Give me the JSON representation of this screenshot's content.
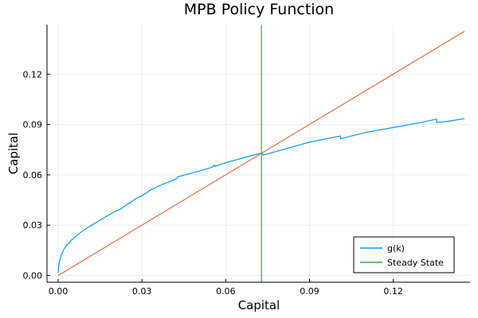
{
  "chart_data": {
    "type": "line",
    "title": "MPB Policy Function",
    "xlabel": "Capital",
    "ylabel": "Capital",
    "xlim": [
      -0.004,
      0.1475
    ],
    "ylim": [
      -0.004,
      0.1495
    ],
    "xticks": [
      0.0,
      0.03,
      0.06,
      0.09,
      0.12
    ],
    "xtick_labels": [
      "0.00",
      "0.03",
      "0.06",
      "0.09",
      "0.12"
    ],
    "yticks": [
      0.0,
      0.03,
      0.06,
      0.09,
      0.12
    ],
    "ytick_labels": [
      "0.00",
      "0.03",
      "0.06",
      "0.09",
      "0.12"
    ],
    "grid": true,
    "legend_position": "bottom-right",
    "series": [
      {
        "name": "g(k)",
        "color": "#009af9",
        "x": [
          0.0,
          0.0002,
          0.0006,
          0.0012,
          0.002,
          0.003,
          0.005,
          0.0075,
          0.01,
          0.0125,
          0.015,
          0.0175,
          0.02,
          0.0225,
          0.025,
          0.0255,
          0.0275,
          0.03,
          0.0325,
          0.0326,
          0.035,
          0.0375,
          0.04,
          0.0425,
          0.0428,
          0.045,
          0.05,
          0.055,
          0.056,
          0.0561,
          0.06,
          0.065,
          0.07,
          0.073,
          0.0735,
          0.08,
          0.09,
          0.1,
          0.101,
          0.1011,
          0.11,
          0.12,
          0.13,
          0.1355,
          0.1356,
          0.14,
          0.1455
        ],
        "y": [
          0.0015,
          0.006,
          0.0095,
          0.0125,
          0.0155,
          0.018,
          0.0215,
          0.025,
          0.028,
          0.0305,
          0.033,
          0.0355,
          0.0378,
          0.0398,
          0.0428,
          0.043,
          0.0455,
          0.0475,
          0.0502,
          0.0506,
          0.0525,
          0.0545,
          0.056,
          0.0578,
          0.0588,
          0.0598,
          0.062,
          0.0645,
          0.0658,
          0.065,
          0.0672,
          0.0695,
          0.0718,
          0.073,
          0.0718,
          0.0748,
          0.0795,
          0.0828,
          0.0832,
          0.0815,
          0.0852,
          0.0882,
          0.0912,
          0.0932,
          0.0912,
          0.092,
          0.0935
        ]
      },
      {
        "name": "Steady State",
        "color": "#3da44d",
        "x": [
          0.0728,
          0.0728
        ],
        "y": [
          -0.004,
          0.1495
        ]
      },
      {
        "name": "",
        "color": "#e26f46",
        "x": [
          0.0,
          0.1455
        ],
        "y": [
          0.0,
          0.1455
        ]
      }
    ]
  }
}
